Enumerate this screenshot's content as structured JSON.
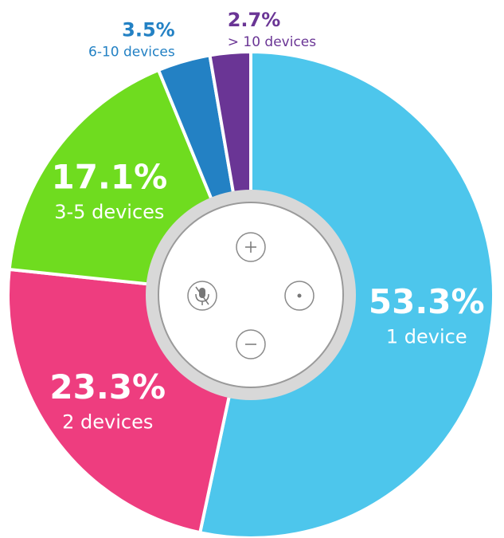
{
  "chart_data": {
    "type": "donut",
    "categories": [
      "1 device",
      "2 devices",
      "3-5 devices",
      "6-10 devices",
      "> 10 devices"
    ],
    "values": [
      53.3,
      23.3,
      17.1,
      3.5,
      2.7
    ],
    "value_labels": [
      "53.3%",
      "23.3%",
      "17.1%",
      "3.5%",
      "2.7%"
    ],
    "colors": [
      "#4dc6ec",
      "#ee3d7f",
      "#6fdc1f",
      "#2381c4",
      "#6a3595"
    ]
  }
}
